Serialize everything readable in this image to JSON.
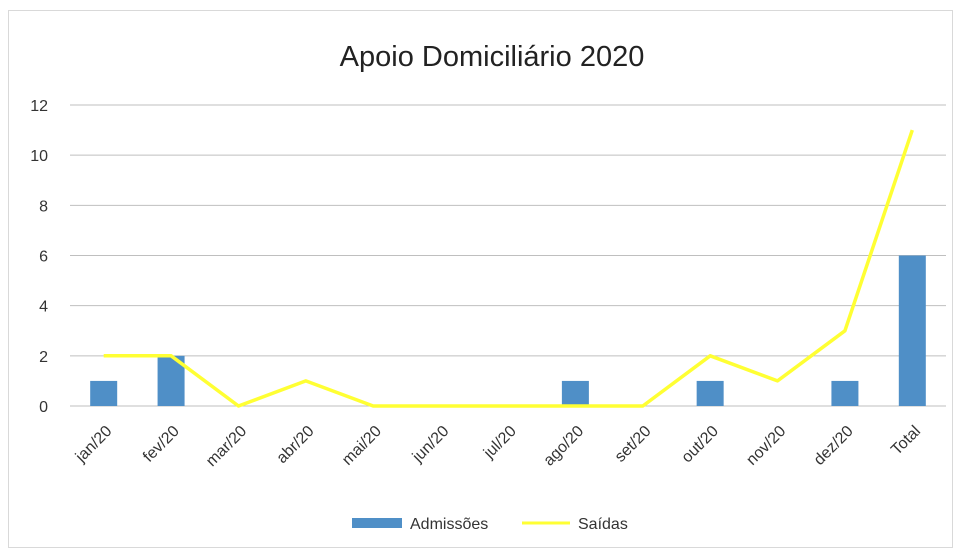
{
  "chart_data": {
    "type": "bar",
    "title": "Apoio Domiciliário 2020",
    "categories": [
      "jan/20",
      "fev/20",
      "mar/20",
      "abr/20",
      "mai/20",
      "jun/20",
      "jul/20",
      "ago/20",
      "set/20",
      "out/20",
      "nov/20",
      "dez/20",
      "Total"
    ],
    "series": [
      {
        "name": "Admissões",
        "type": "bar",
        "color": "#4f8fc7",
        "values": [
          1,
          2,
          0,
          0,
          0,
          0,
          0,
          1,
          0,
          1,
          0,
          1,
          6
        ]
      },
      {
        "name": "Saídas",
        "type": "line",
        "color": "#ffff33",
        "values": [
          2,
          2,
          0,
          1,
          0,
          0,
          0,
          0,
          0,
          2,
          1,
          3,
          11
        ]
      }
    ],
    "ylim": [
      0,
      12
    ],
    "yticks": [
      "0",
      "2",
      "4",
      "6",
      "8",
      "10",
      "12"
    ],
    "grid": true,
    "legend": "bottom"
  }
}
